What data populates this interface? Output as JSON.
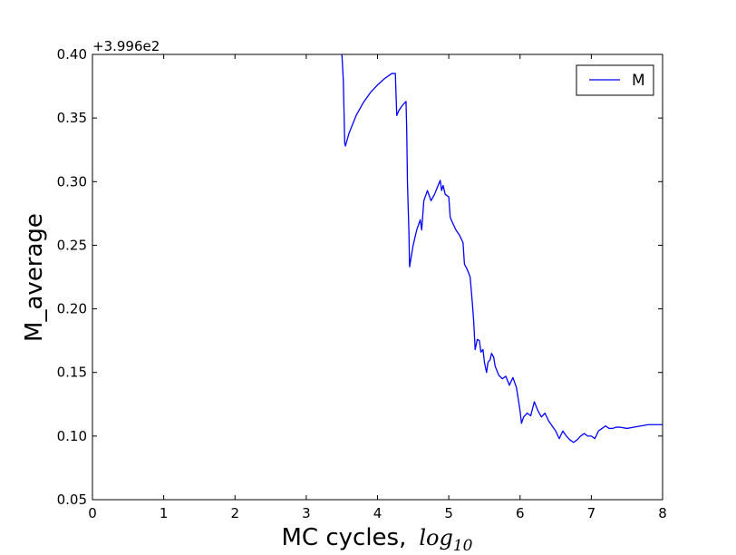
{
  "chart_data": {
    "type": "line",
    "title": "",
    "xlabel": "MC cycles,",
    "xlabel_math": "log",
    "xlabel_math_sub": "10",
    "ylabel": "M_average",
    "y_offset_label": "+3.996e2",
    "xlim": [
      0,
      8
    ],
    "ylim": [
      0.05,
      0.4
    ],
    "x_ticks": [
      0,
      1,
      2,
      3,
      4,
      5,
      6,
      7,
      8
    ],
    "x_tick_labels": [
      "0",
      "1",
      "2",
      "3",
      "4",
      "5",
      "6",
      "7",
      "8"
    ],
    "y_ticks": [
      0.05,
      0.1,
      0.15,
      0.2,
      0.25,
      0.3,
      0.35,
      0.4
    ],
    "y_tick_labels": [
      "0.05",
      "0.10",
      "0.15",
      "0.20",
      "0.25",
      "0.30",
      "0.35",
      "0.40"
    ],
    "grid": false,
    "legend": {
      "placement": "top-right",
      "entries": [
        "M"
      ]
    },
    "series": [
      {
        "name": "M",
        "color": "#0000ff",
        "x": [
          3.5,
          3.52,
          3.54,
          3.55,
          3.6,
          3.7,
          3.8,
          3.9,
          4.0,
          4.1,
          4.2,
          4.25,
          4.27,
          4.3,
          4.35,
          4.4,
          4.41,
          4.42,
          4.43,
          4.44,
          4.45,
          4.47,
          4.5,
          4.55,
          4.6,
          4.62,
          4.65,
          4.7,
          4.75,
          4.8,
          4.85,
          4.88,
          4.9,
          4.92,
          4.95,
          5.0,
          5.02,
          5.05,
          5.1,
          5.15,
          5.2,
          5.22,
          5.25,
          5.28,
          5.3,
          5.33,
          5.35,
          5.37,
          5.4,
          5.43,
          5.45,
          5.48,
          5.5,
          5.53,
          5.55,
          5.58,
          5.6,
          5.63,
          5.65,
          5.7,
          5.75,
          5.8,
          5.85,
          5.9,
          5.95,
          6.0,
          6.02,
          6.05,
          6.1,
          6.15,
          6.2,
          6.25,
          6.3,
          6.35,
          6.4,
          6.45,
          6.5,
          6.55,
          6.6,
          6.65,
          6.7,
          6.75,
          6.8,
          6.85,
          6.9,
          6.95,
          7.0,
          7.05,
          7.1,
          7.15,
          7.2,
          7.25,
          7.3,
          7.35,
          7.4,
          7.5,
          7.6,
          7.7,
          7.8,
          7.9,
          8.0
        ],
        "values": [
          0.4,
          0.38,
          0.33,
          0.328,
          0.338,
          0.352,
          0.362,
          0.37,
          0.376,
          0.381,
          0.385,
          0.385,
          0.352,
          0.356,
          0.36,
          0.363,
          0.34,
          0.3,
          0.28,
          0.262,
          0.233,
          0.24,
          0.25,
          0.262,
          0.27,
          0.262,
          0.285,
          0.293,
          0.285,
          0.29,
          0.297,
          0.301,
          0.293,
          0.297,
          0.29,
          0.288,
          0.272,
          0.268,
          0.262,
          0.258,
          0.252,
          0.235,
          0.232,
          0.228,
          0.225,
          0.205,
          0.19,
          0.168,
          0.176,
          0.175,
          0.166,
          0.168,
          0.158,
          0.15,
          0.158,
          0.16,
          0.165,
          0.162,
          0.155,
          0.148,
          0.145,
          0.147,
          0.14,
          0.146,
          0.138,
          0.12,
          0.11,
          0.115,
          0.118,
          0.116,
          0.127,
          0.12,
          0.115,
          0.118,
          0.112,
          0.108,
          0.104,
          0.098,
          0.104,
          0.1,
          0.097,
          0.095,
          0.097,
          0.1,
          0.102,
          0.1,
          0.1,
          0.098,
          0.104,
          0.106,
          0.108,
          0.106,
          0.106,
          0.107,
          0.107,
          0.106,
          0.107,
          0.108,
          0.109,
          0.109,
          0.109
        ]
      }
    ]
  }
}
